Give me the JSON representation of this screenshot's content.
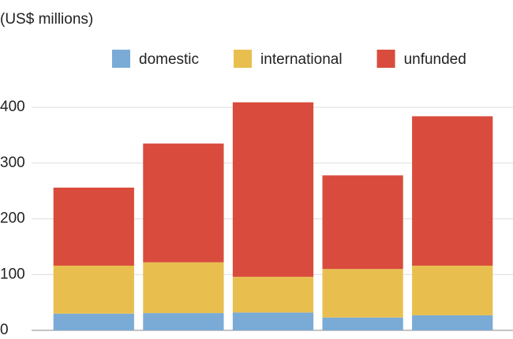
{
  "chart_data": {
    "type": "stacked_bar",
    "y_label": "(US$ millions)",
    "categories": [
      null,
      null,
      null,
      null,
      null
    ],
    "series": [
      {
        "name": "domestic",
        "color": "#7aabd6",
        "values": [
          30,
          31,
          32,
          23,
          27
        ]
      },
      {
        "name": "international",
        "color": "#e8bf4f",
        "values": [
          86,
          91,
          64,
          87,
          89
        ]
      },
      {
        "name": "unfunded",
        "color": "#d94c3d",
        "values": [
          140,
          213,
          313,
          168,
          268
        ]
      }
    ],
    "ylim": [
      0,
      420
    ],
    "yticks": [
      0,
      100,
      200,
      300,
      400
    ],
    "grid": true,
    "legend": "top"
  }
}
